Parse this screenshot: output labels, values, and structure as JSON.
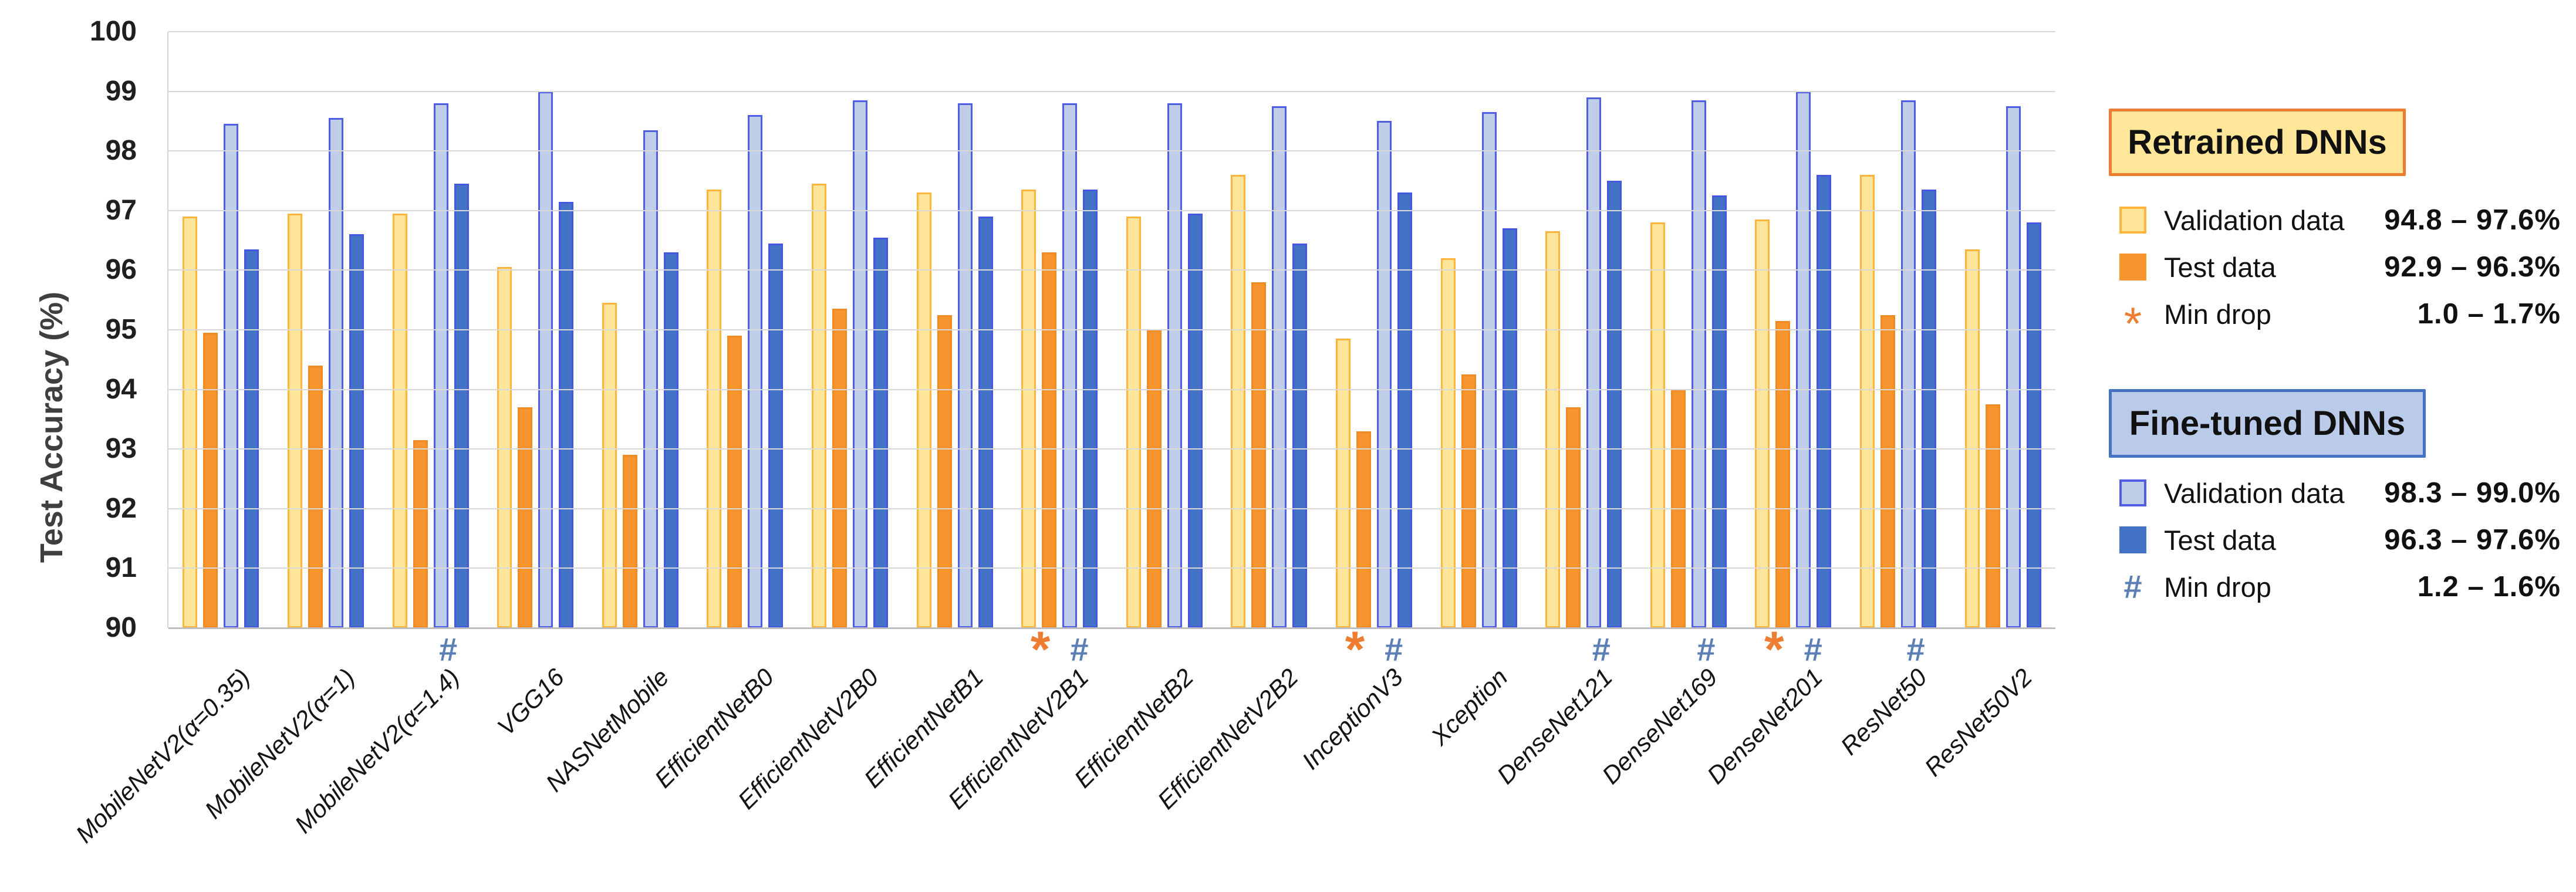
{
  "chart_data": {
    "type": "bar",
    "title": "",
    "xlabel": "",
    "ylabel": "Test Accuracy (%)",
    "ylim": [
      90,
      100
    ],
    "ytick_step": 1,
    "yticks": [
      100,
      99,
      98,
      97,
      96,
      95,
      94,
      93,
      92,
      91,
      90
    ],
    "grid": true,
    "legend_position": "right",
    "categories": [
      "MobileNetV2(α=0.35)",
      "MobileNetV2(α=1)",
      "MobileNetV2(α=1.4)",
      "VGG16",
      "NASNetMobile",
      "EfficientNetB0",
      "EfficientNetV2B0",
      "EfficientNetB1",
      "EfficientNetV2B1",
      "EfficientNetB2",
      "EfficientNetV2B2",
      "InceptionV3",
      "Xception",
      "DenseNet121",
      "DenseNet169",
      "DenseNet201",
      "ResNet50",
      "ResNet50V2"
    ],
    "series": [
      {
        "name": "Retrained Validation data",
        "color": "#FFE599",
        "border": "#FFB43B",
        "values": [
          96.9,
          96.95,
          96.95,
          96.05,
          95.45,
          97.35,
          97.45,
          97.3,
          97.35,
          96.9,
          97.6,
          94.85,
          96.2,
          96.65,
          96.8,
          96.85,
          97.6,
          96.35
        ]
      },
      {
        "name": "Retrained Test data",
        "color": "#F6952D",
        "border": "#F18A22",
        "values": [
          94.95,
          94.4,
          93.15,
          93.7,
          92.9,
          94.9,
          95.35,
          95.25,
          96.3,
          95.0,
          95.8,
          93.3,
          94.25,
          93.7,
          94.0,
          95.15,
          95.25,
          93.75
        ]
      },
      {
        "name": "Fine-tuned Validation data",
        "color": "#BFCDE9",
        "border": "#505EE4",
        "values": [
          98.45,
          98.55,
          98.8,
          99.0,
          98.35,
          98.6,
          98.85,
          98.8,
          98.8,
          98.8,
          98.75,
          98.5,
          98.65,
          98.9,
          98.85,
          99.0,
          98.85,
          98.75
        ]
      },
      {
        "name": "Fine-tuned Test data",
        "color": "#4472C7",
        "border": "#4358DE",
        "values": [
          96.35,
          96.6,
          97.45,
          97.15,
          96.3,
          96.45,
          96.55,
          96.9,
          97.35,
          96.95,
          96.45,
          97.3,
          96.7,
          97.5,
          97.25,
          97.6,
          97.35,
          96.8
        ]
      }
    ],
    "category_markers": [
      [],
      [],
      [
        "#"
      ],
      [],
      [],
      [],
      [],
      [],
      [
        "*",
        "#"
      ],
      [],
      [],
      [
        "*",
        "#"
      ],
      [],
      [
        "#"
      ],
      [
        "#"
      ],
      [
        "*",
        "#"
      ],
      [
        "#"
      ],
      []
    ],
    "marker_colors": {
      "star": "#ED7D31",
      "hash": "#5B7FB5"
    },
    "gridline_color": "#D9D9D9"
  },
  "legend": {
    "retrained": {
      "title": "Retrained DNNs",
      "box_fill": "#FFE699",
      "box_border": "#ED7D31",
      "validation": {
        "label": "Validation data",
        "value": "94.8 – 97.6%"
      },
      "test": {
        "label": "Test data",
        "value": "92.9 – 96.3%"
      },
      "min_drop": {
        "symbol": "*",
        "label": "Min drop",
        "value": "1.0 – 1.7%"
      }
    },
    "fine_tuned": {
      "title": "Fine-tuned DNNs",
      "box_fill": "#B9CBE9",
      "box_border": "#4472C4",
      "validation": {
        "label": "Validation data",
        "value": "98.3 – 99.0%"
      },
      "test": {
        "label": "Test data",
        "value": "96.3 – 97.6%"
      },
      "min_drop": {
        "symbol": "#",
        "label": "Min drop",
        "value": "1.2 – 1.6%"
      }
    }
  }
}
